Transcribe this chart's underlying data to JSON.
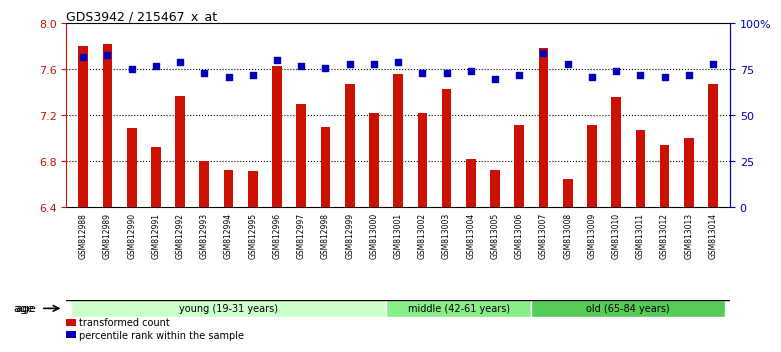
{
  "title": "GDS3942 / 215467_x_at",
  "samples": [
    "GSM812988",
    "GSM812989",
    "GSM812990",
    "GSM812991",
    "GSM812992",
    "GSM812993",
    "GSM812994",
    "GSM812995",
    "GSM812996",
    "GSM812997",
    "GSM812998",
    "GSM812999",
    "GSM813000",
    "GSM813001",
    "GSM813002",
    "GSM813003",
    "GSM813004",
    "GSM813005",
    "GSM813006",
    "GSM813007",
    "GSM813008",
    "GSM813009",
    "GSM813010",
    "GSM813011",
    "GSM813012",
    "GSM813013",
    "GSM813014"
  ],
  "transformed_count": [
    7.8,
    7.82,
    7.09,
    6.93,
    7.37,
    6.8,
    6.73,
    6.72,
    7.63,
    7.3,
    7.1,
    7.47,
    7.22,
    7.56,
    7.22,
    7.43,
    6.82,
    6.73,
    7.12,
    7.79,
    6.65,
    7.12,
    7.36,
    7.07,
    6.94,
    7.0,
    7.47
  ],
  "percentile_rank": [
    82,
    83,
    75,
    77,
    79,
    73,
    71,
    72,
    80,
    77,
    76,
    78,
    78,
    79,
    73,
    73,
    74,
    70,
    72,
    84,
    78,
    71,
    74,
    72,
    71,
    72,
    78
  ],
  "groups": [
    {
      "label": "young (19-31 years)",
      "start": 0,
      "end": 13,
      "color": "#ccffcc"
    },
    {
      "label": "middle (42-61 years)",
      "start": 13,
      "end": 19,
      "color": "#88ee88"
    },
    {
      "label": "old (65-84 years)",
      "start": 19,
      "end": 27,
      "color": "#55cc55"
    }
  ],
  "ylim_left": [
    6.4,
    8.0
  ],
  "ylim_right": [
    0,
    100
  ],
  "yticks_left": [
    6.4,
    6.8,
    7.2,
    7.6,
    8.0
  ],
  "ytick_labels_right": [
    "0",
    "25",
    "50",
    "75",
    "100%"
  ],
  "yticks_right": [
    0,
    25,
    50,
    75,
    100
  ],
  "bar_color": "#cc1100",
  "dot_color": "#0000bb",
  "bar_bottom": 6.4,
  "legend_labels": [
    "transformed count",
    "percentile rank within the sample"
  ],
  "legend_colors": [
    "#cc1100",
    "#0000bb"
  ],
  "age_label": "age",
  "left_axis_color": "#cc1100",
  "right_axis_color": "#0000bb",
  "background_color": "#ffffff",
  "tick_area_color": "#cccccc",
  "n_samples": 27
}
